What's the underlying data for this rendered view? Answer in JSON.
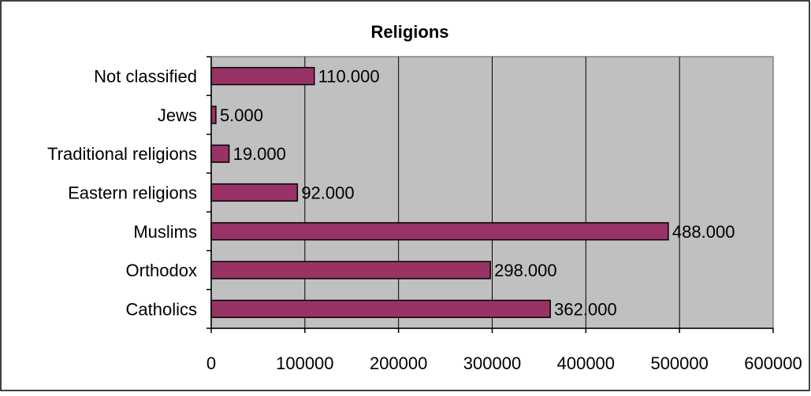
{
  "chart_data": {
    "type": "bar",
    "orientation": "horizontal",
    "title": "Religions",
    "categories": [
      "Not classified",
      "Jews",
      "Traditional religions",
      "Eastern religions",
      "Muslims",
      "Orthodox",
      "Catholics"
    ],
    "values": [
      110000,
      5000,
      19000,
      92000,
      488000,
      298000,
      362000
    ],
    "data_labels": [
      "110.000",
      "5.000",
      "19.000",
      "92.000",
      "488.000",
      "298.000",
      "362.000"
    ],
    "xlim": [
      0,
      600000
    ],
    "xticks": [
      0,
      100000,
      200000,
      300000,
      400000,
      500000,
      600000
    ],
    "xtick_labels": [
      "0",
      "100000",
      "200000",
      "300000",
      "400000",
      "500000",
      "600000"
    ],
    "xlabel": "",
    "ylabel": "",
    "grid": true,
    "legend": "none",
    "colors": {
      "bar": "#993366",
      "plot_background": "#c0c0c0",
      "gridline": "#000000"
    }
  }
}
